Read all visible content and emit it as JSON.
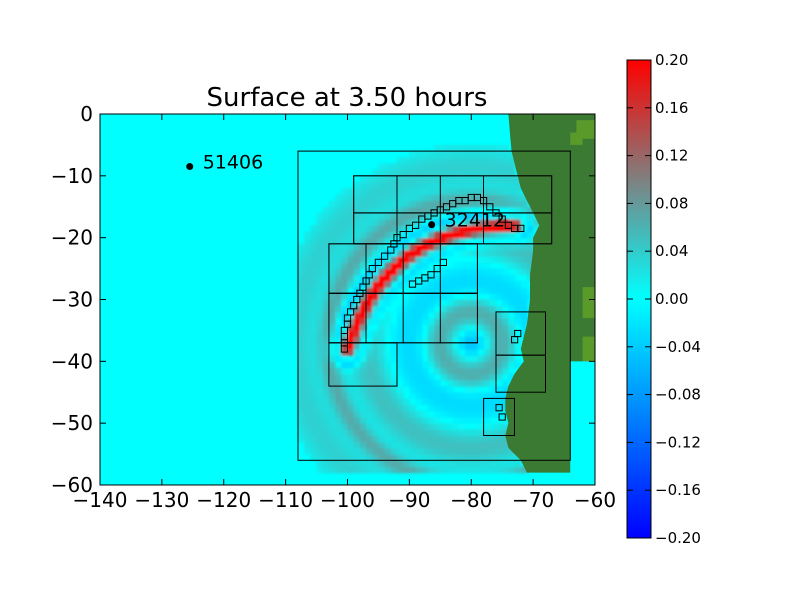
{
  "chart_data": {
    "type": "heatmap",
    "title": "Surface at 3.50 hours",
    "xlim": [
      -140,
      -60
    ],
    "ylim": [
      -60,
      0
    ],
    "x_ticks": [
      -140,
      -130,
      -120,
      -110,
      -100,
      -90,
      -80,
      -70,
      -60
    ],
    "y_ticks": [
      0,
      -10,
      -20,
      -30,
      -40,
      -50,
      -60
    ],
    "x_tick_labels": [
      "−140",
      "−130",
      "−120",
      "−110",
      "−100",
      "−90",
      "−80",
      "−70",
      "−60"
    ],
    "y_tick_labels": [
      "0",
      "−10",
      "−20",
      "−30",
      "−40",
      "−50",
      "−60"
    ],
    "colorbar": {
      "vmin": -0.2,
      "vmax": 0.2,
      "ticks": [
        0.2,
        0.16,
        0.12,
        0.08,
        0.04,
        0.0,
        -0.04,
        -0.08,
        -0.12,
        -0.16,
        -0.2
      ],
      "tick_labels": [
        "0.20",
        "0.16",
        "0.12",
        "0.08",
        "0.04",
        "0.00",
        "−0.04",
        "−0.08",
        "−0.12",
        "−0.16",
        "−0.20"
      ],
      "colors": [
        "#0000ff",
        "#00ffff",
        "#ff0000"
      ]
    },
    "background_color": "#00ffff",
    "land_color": "#3a7a32",
    "gauges": [
      {
        "label": "51406",
        "x": -125.5,
        "y": -8.5
      },
      {
        "label": "32412",
        "x": -86.4,
        "y": -17.9
      }
    ],
    "amr_grids": {
      "level2": [
        {
          "x1": -108,
          "x2": -64,
          "y1": -56,
          "y2": -6
        }
      ],
      "level3": [
        {
          "x1": -99,
          "x2": -67,
          "y1": -10,
          "y2": -16
        },
        {
          "x1": -99,
          "x2": -67,
          "y1": -16,
          "y2": -21
        },
        {
          "x1": -103,
          "x2": -79,
          "y1": -21,
          "y2": -29
        },
        {
          "x1": -103,
          "x2": -79,
          "y1": -29,
          "y2": -37
        },
        {
          "x1": -103,
          "x2": -92,
          "y1": -37,
          "y2": -44
        },
        {
          "x1": -76,
          "x2": -68,
          "y1": -32,
          "y2": -39
        },
        {
          "x1": -76,
          "x2": -68,
          "y1": -39,
          "y2": -45
        },
        {
          "x1": -78,
          "x2": -73,
          "y1": -46,
          "y2": -52
        }
      ],
      "level4_cell_size": 1.0,
      "level4": [
        [
          -100.5,
          -38
        ],
        [
          -100.5,
          -37
        ],
        [
          -100.5,
          -36
        ],
        [
          -100.5,
          -35
        ],
        [
          -100,
          -34
        ],
        [
          -100,
          -33
        ],
        [
          -99.5,
          -32
        ],
        [
          -99,
          -31
        ],
        [
          -98.5,
          -30
        ],
        [
          -98,
          -29
        ],
        [
          -97.5,
          -28
        ],
        [
          -97,
          -27
        ],
        [
          -96.5,
          -26
        ],
        [
          -96,
          -25
        ],
        [
          -95,
          -24
        ],
        [
          -94,
          -23
        ],
        [
          -93,
          -22
        ],
        [
          -92.5,
          -21
        ],
        [
          -92,
          -20
        ],
        [
          -91,
          -19.5
        ],
        [
          -90,
          -18.5
        ],
        [
          -89,
          -18
        ],
        [
          -88,
          -17
        ],
        [
          -87,
          -16.5
        ],
        [
          -86,
          -16
        ],
        [
          -85,
          -15.5
        ],
        [
          -84,
          -15
        ],
        [
          -83,
          -14.5
        ],
        [
          -82,
          -14
        ],
        [
          -81,
          -14
        ],
        [
          -80,
          -13.5
        ],
        [
          -79,
          -13.5
        ],
        [
          -78,
          -14
        ],
        [
          -77,
          -15
        ],
        [
          -76,
          -16
        ],
        [
          -75,
          -17
        ],
        [
          -74,
          -18
        ],
        [
          -73,
          -18.5
        ],
        [
          -72,
          -18.5
        ],
        [
          -89.5,
          -27.5
        ],
        [
          -88.5,
          -27
        ],
        [
          -87.5,
          -26.5
        ],
        [
          -86.5,
          -26
        ],
        [
          -85.5,
          -25
        ],
        [
          -84.5,
          -24
        ],
        [
          -73,
          -36.5
        ],
        [
          -72.5,
          -35.5
        ],
        [
          -75.5,
          -47.5
        ],
        [
          -75,
          -49
        ]
      ]
    },
    "field": {
      "crest_start": [
        -100,
        -38
      ],
      "crest_control": [
        -94,
        -18
      ],
      "crest_end": [
        -73,
        -18
      ],
      "crest_peak": 0.2,
      "trough_peak": -0.1,
      "epicenter": [
        -80,
        -37
      ]
    }
  }
}
